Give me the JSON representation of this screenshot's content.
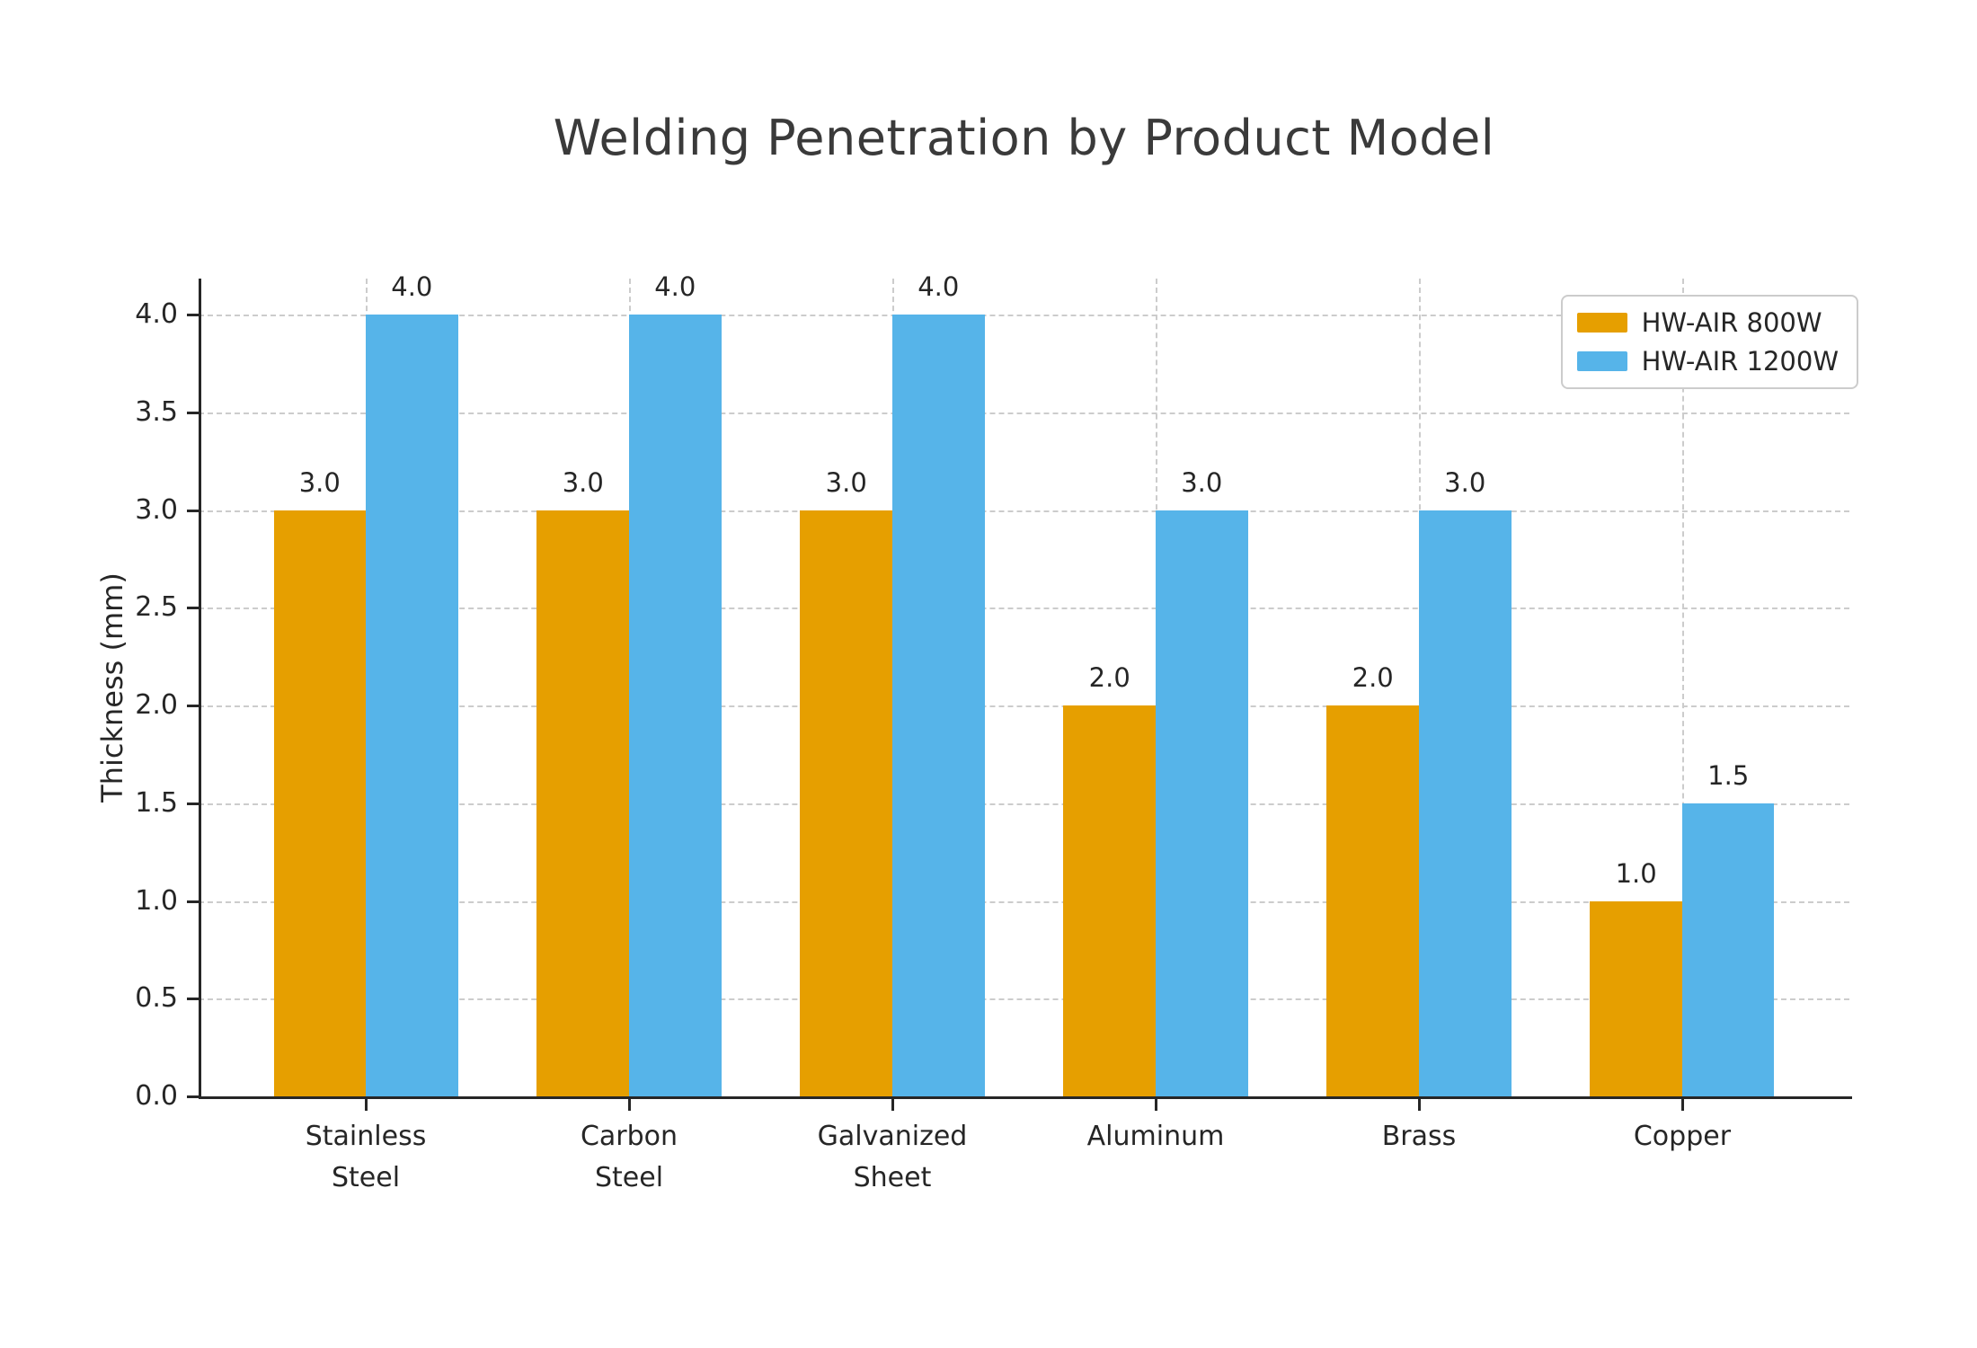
{
  "chart_data": {
    "type": "bar",
    "title": "Welding Penetration by Product Model",
    "ylabel": "Thickness (mm)",
    "xlabel": "",
    "categories": [
      "Stainless Steel",
      "Carbon Steel",
      "Galvanized Sheet",
      "Aluminum",
      "Brass",
      "Copper"
    ],
    "category_label_lines": [
      [
        "Stainless",
        "Steel"
      ],
      [
        "Carbon",
        "Steel"
      ],
      [
        "Galvanized",
        "Sheet"
      ],
      [
        "Aluminum"
      ],
      [
        "Brass"
      ],
      [
        "Copper"
      ]
    ],
    "series": [
      {
        "name": "HW-AIR 800W",
        "color": "#E69F00",
        "values": [
          3.0,
          3.0,
          3.0,
          2.0,
          2.0,
          1.0
        ]
      },
      {
        "name": "HW-AIR 1200W",
        "color": "#56B4E9",
        "values": [
          4.0,
          4.0,
          4.0,
          3.0,
          3.0,
          1.5
        ]
      }
    ],
    "bar_value_labels": [
      [
        "3.0",
        "3.0",
        "3.0",
        "2.0",
        "2.0",
        "1.0"
      ],
      [
        "4.0",
        "4.0",
        "4.0",
        "3.0",
        "3.0",
        "1.5"
      ]
    ],
    "ytick_labels": [
      "0.0",
      "0.5",
      "1.0",
      "1.5",
      "2.0",
      "2.5",
      "3.0",
      "3.5",
      "4.0"
    ],
    "ytick_values": [
      0,
      0.5,
      1.0,
      1.5,
      2.0,
      2.5,
      3.0,
      3.5,
      4.0
    ],
    "ylim": [
      0,
      4.185
    ],
    "grid": true,
    "legend_position": "upper right",
    "colors": {
      "axis": "#262626",
      "grid": "#cccccc",
      "title_text": "#3a3a3a",
      "tick_text": "#262626",
      "background": "#ffffff"
    }
  }
}
